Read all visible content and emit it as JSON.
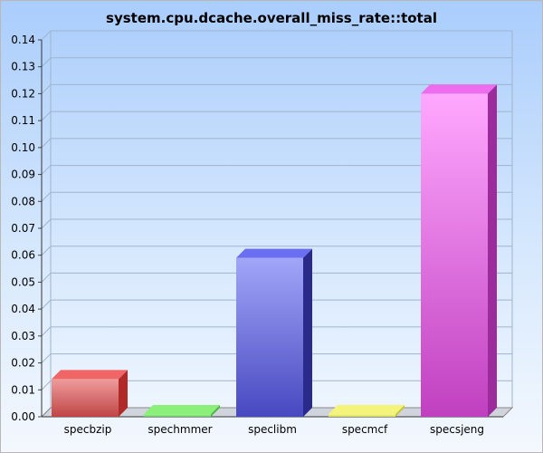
{
  "chart_data": {
    "type": "bar",
    "title": "system.cpu.dcache.overall_miss_rate::total",
    "xlabel": "",
    "ylabel": "",
    "categories": [
      "specbzip",
      "spechmmer",
      "speclibm",
      "specmcf",
      "specsjeng"
    ],
    "values": [
      0.014,
      0.001,
      0.059,
      0.001,
      0.12
    ],
    "ylim": [
      0,
      0.14
    ],
    "yticks": [
      "0.00",
      "0.01",
      "0.02",
      "0.03",
      "0.04",
      "0.05",
      "0.06",
      "0.07",
      "0.08",
      "0.09",
      "0.10",
      "0.11",
      "0.12",
      "0.13",
      "0.14"
    ],
    "grid": true,
    "style": "3d",
    "colors": [
      {
        "front_top": "#ee9c9c",
        "front_bottom": "#c04545",
        "top": "#f06565",
        "side": "#b02a2a"
      },
      {
        "front_top": "#a9f59a",
        "front_bottom": "#5fd155",
        "top": "#8af07a",
        "side": "#4fb545"
      },
      {
        "front_top": "#a2a6f8",
        "front_bottom": "#4848c0",
        "top": "#6a6ef0",
        "side": "#2a2a8a"
      },
      {
        "front_top": "#f6f699",
        "front_bottom": "#d8d850",
        "top": "#f4f47a",
        "side": "#c6c63c"
      },
      {
        "front_top": "#ffa8ff",
        "front_bottom": "#c040c0",
        "top": "#ee6cee",
        "side": "#9c2c9c"
      }
    ]
  }
}
